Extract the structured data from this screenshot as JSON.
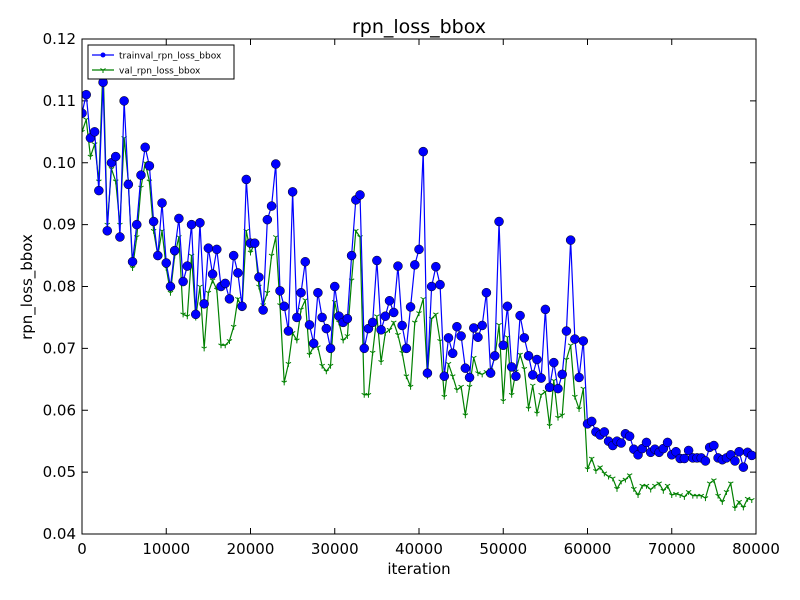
{
  "chart_data": {
    "type": "line",
    "title": "rpn_loss_bbox",
    "x_label": "iteration",
    "y_label": "rpn_loss_bbox",
    "x": [
      0,
      500,
      1000,
      1500,
      2000,
      2500,
      3000,
      3500,
      4000,
      4500,
      5000,
      5500,
      6000,
      6500,
      7000,
      7500,
      8000,
      8500,
      9000,
      9500,
      10000,
      10500,
      11000,
      11500,
      12000,
      12500,
      13000,
      13500,
      14000,
      14500,
      15000,
      15500,
      16000,
      16500,
      17000,
      17500,
      18000,
      18500,
      19000,
      19500,
      20000,
      20500,
      21000,
      21500,
      22000,
      22500,
      23000,
      23500,
      24000,
      24500,
      25000,
      25500,
      26000,
      26500,
      27000,
      27500,
      28000,
      28500,
      29000,
      29500,
      30000,
      30500,
      31000,
      31500,
      32000,
      32500,
      33000,
      33500,
      34000,
      34500,
      35000,
      35500,
      36000,
      36500,
      37000,
      37500,
      38000,
      38500,
      39000,
      39500,
      40000,
      40500,
      41000,
      41500,
      42000,
      42500,
      43000,
      43500,
      44000,
      44500,
      45000,
      45500,
      46000,
      46500,
      47000,
      47500,
      48000,
      48500,
      49000,
      49500,
      50000,
      50500,
      51000,
      51500,
      52000,
      52500,
      53000,
      53500,
      54000,
      54500,
      55000,
      55500,
      56000,
      56500,
      57000,
      57500,
      58000,
      58500,
      59000,
      59500,
      60000,
      60500,
      61000,
      61500,
      62000,
      62500,
      63000,
      63500,
      64000,
      64500,
      65000,
      65500,
      66000,
      66500,
      67000,
      67500,
      68000,
      68500,
      69000,
      69500,
      70000,
      70500,
      71000,
      71500,
      72000,
      72500,
      73000,
      73500,
      74000,
      74500,
      75000,
      75500,
      76000,
      76500,
      77000,
      77500,
      78000,
      78500,
      79000,
      79500
    ],
    "series": [
      {
        "name": "trainval_rpn_loss_bbox",
        "color": "#0000ff",
        "marker": "circle",
        "values": [
          0.108,
          0.111,
          0.104,
          0.105,
          0.0955,
          0.113,
          0.089,
          0.1,
          0.101,
          0.088,
          0.11,
          0.0965,
          0.084,
          0.09,
          0.098,
          0.1025,
          0.0995,
          0.0905,
          0.085,
          0.0935,
          0.0838,
          0.08,
          0.0858,
          0.091,
          0.0808,
          0.0833,
          0.09,
          0.0755,
          0.0903,
          0.0772,
          0.0862,
          0.082,
          0.086,
          0.08,
          0.0805,
          0.078,
          0.085,
          0.0822,
          0.0768,
          0.0973,
          0.087,
          0.087,
          0.0815,
          0.0762,
          0.0908,
          0.093,
          0.0998,
          0.0793,
          0.0768,
          0.0728,
          0.0953,
          0.075,
          0.079,
          0.084,
          0.0738,
          0.0708,
          0.079,
          0.075,
          0.0732,
          0.07,
          0.08,
          0.0752,
          0.0742,
          0.0748,
          0.085,
          0.094,
          0.0948,
          0.07,
          0.0732,
          0.0742,
          0.0842,
          0.073,
          0.0752,
          0.0777,
          0.0758,
          0.0833,
          0.0737,
          0.07,
          0.0767,
          0.0835,
          0.086,
          0.1018,
          0.066,
          0.08,
          0.0832,
          0.0803,
          0.0655,
          0.0717,
          0.0692,
          0.0735,
          0.072,
          0.0668,
          0.0653,
          0.0733,
          0.0718,
          0.0737,
          0.079,
          0.066,
          0.0688,
          0.0905,
          0.0705,
          0.0768,
          0.067,
          0.0655,
          0.0753,
          0.0717,
          0.0688,
          0.0657,
          0.0682,
          0.0652,
          0.0763,
          0.0637,
          0.0677,
          0.0635,
          0.0658,
          0.0728,
          0.0875,
          0.0715,
          0.0653,
          0.0712,
          0.0578,
          0.0582,
          0.0565,
          0.056,
          0.0565,
          0.055,
          0.0543,
          0.055,
          0.0547,
          0.0562,
          0.0558,
          0.0537,
          0.0528,
          0.0538,
          0.0548,
          0.0532,
          0.0537,
          0.0532,
          0.0538,
          0.0548,
          0.0528,
          0.0533,
          0.0522,
          0.0522,
          0.0535,
          0.0523,
          0.0523,
          0.0523,
          0.0518,
          0.054,
          0.0543,
          0.0523,
          0.052,
          0.0523,
          0.0528,
          0.0518,
          0.0533,
          0.0508,
          0.0532,
          0.0527
        ]
      },
      {
        "name": "val_rpn_loss_bbox",
        "color": "#008000",
        "marker": "tri",
        "values": [
          0.105,
          0.107,
          0.101,
          0.103,
          0.097,
          0.116,
          0.09,
          0.099,
          0.097,
          0.09,
          0.104,
          0.097,
          0.083,
          0.088,
          0.096,
          0.1,
          0.097,
          0.089,
          0.085,
          0.089,
          0.083,
          0.079,
          0.085,
          0.088,
          0.0755,
          0.0752,
          0.085,
          0.075,
          0.08,
          0.07,
          0.079,
          0.081,
          0.0795,
          0.0705,
          0.0705,
          0.0712,
          0.0735,
          0.078,
          0.0765,
          0.089,
          0.0855,
          0.087,
          0.08,
          0.077,
          0.079,
          0.085,
          0.088,
          0.077,
          0.0645,
          0.0675,
          0.0725,
          0.0713,
          0.0763,
          0.0778,
          0.069,
          0.0703,
          0.0702,
          0.0672,
          0.0663,
          0.0672,
          0.0775,
          0.0742,
          0.0713,
          0.072,
          0.081,
          0.089,
          0.088,
          0.0625,
          0.0625,
          0.0693,
          0.0752,
          0.0678,
          0.0725,
          0.073,
          0.0742,
          0.0722,
          0.0693,
          0.0655,
          0.0638,
          0.0742,
          0.0757,
          0.078,
          0.0655,
          0.0748,
          0.0755,
          0.0712,
          0.0622,
          0.0675,
          0.0655,
          0.0633,
          0.0638,
          0.0592,
          0.0638,
          0.0685,
          0.066,
          0.0658,
          0.0662,
          0.0665,
          0.0685,
          0.0738,
          0.0615,
          0.0718,
          0.0625,
          0.0663,
          0.069,
          0.0667,
          0.0603,
          0.064,
          0.0595,
          0.0625,
          0.063,
          0.0575,
          0.0648,
          0.0588,
          0.0592,
          0.0682,
          0.0705,
          0.0622,
          0.0602,
          0.0635,
          0.0505,
          0.0522,
          0.0502,
          0.0508,
          0.0498,
          0.0493,
          0.049,
          0.0473,
          0.0485,
          0.0488,
          0.0495,
          0.0473,
          0.0463,
          0.0478,
          0.0478,
          0.0472,
          0.0478,
          0.0482,
          0.047,
          0.0478,
          0.0463,
          0.0465,
          0.0463,
          0.046,
          0.0468,
          0.0462,
          0.0462,
          0.0462,
          0.0458,
          0.0482,
          0.0487,
          0.0462,
          0.0452,
          0.0468,
          0.0482,
          0.0442,
          0.0452,
          0.0443,
          0.0457,
          0.0455
        ]
      }
    ],
    "xlim": [
      0,
      80000
    ],
    "xticks": [
      0,
      10000,
      20000,
      30000,
      40000,
      50000,
      60000,
      70000,
      80000
    ],
    "ylim": [
      0.04,
      0.12
    ],
    "yticks": [
      0.04,
      0.05,
      0.06,
      0.07,
      0.08,
      0.09,
      {
        "value": 0.1,
        "label": "0.10"
      },
      0.11,
      0.12
    ],
    "legend": "upper left",
    "grid": false
  }
}
